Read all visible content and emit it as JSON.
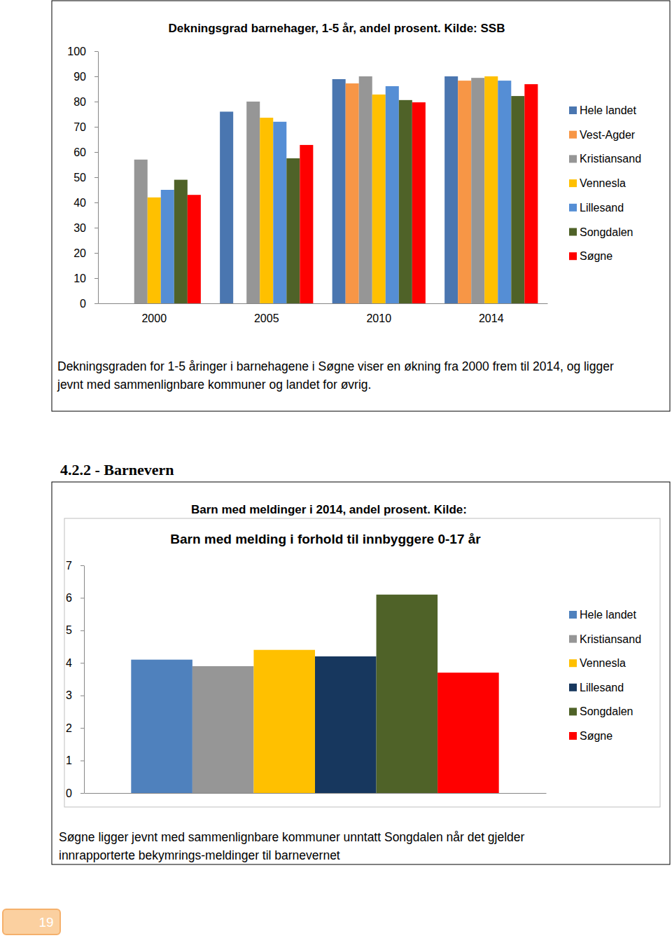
{
  "chart_data": [
    {
      "type": "bar",
      "title": "Dekningsgrad barnehager, 1-5 år, andel prosent. Kilde: SSB",
      "categories": [
        "2000",
        "2005",
        "2010",
        "2014"
      ],
      "series": [
        {
          "name": "Hele landet",
          "color": "#4a76b0",
          "values": [
            null,
            76,
            88.9,
            90
          ]
        },
        {
          "name": "Vest-Agder",
          "color": "#f79646",
          "values": [
            null,
            null,
            87.2,
            88.3
          ]
        },
        {
          "name": "Kristiansand",
          "color": "#969696",
          "values": [
            57,
            80,
            90,
            89.4
          ]
        },
        {
          "name": "Vennesla",
          "color": "#ffc000",
          "values": [
            42,
            73.6,
            82.8,
            90
          ]
        },
        {
          "name": "Lillesand",
          "color": "#558ed5",
          "values": [
            45,
            72,
            86.1,
            88.3
          ]
        },
        {
          "name": "Songdalen",
          "color": "#4f6228",
          "values": [
            49,
            57.5,
            80.6,
            82.2
          ]
        },
        {
          "name": "Søgne",
          "color": "#ff0000",
          "values": [
            43,
            62.8,
            79.7,
            86.9
          ]
        }
      ],
      "ylim": [
        0,
        100
      ],
      "yticks": [
        0,
        10,
        20,
        30,
        40,
        50,
        60,
        70,
        80,
        90,
        100
      ],
      "grid": false,
      "legend": "right"
    },
    {
      "type": "bar",
      "title": "Barn med meldinger i 2014, andel prosent. Kilde:",
      "subtitle": "Barn med melding i forhold til innbyggere 0-17 år",
      "categories": [
        null
      ],
      "series": [
        {
          "name": "Hele landet",
          "color": "#4f81bd",
          "values": [
            4.1
          ]
        },
        {
          "name": "Kristiansand",
          "color": "#969696",
          "values": [
            3.9
          ]
        },
        {
          "name": "Vennesla",
          "color": "#ffc000",
          "values": [
            4.4
          ]
        },
        {
          "name": "Lillesand",
          "color": "#17375e",
          "values": [
            4.2
          ]
        },
        {
          "name": "Songdalen",
          "color": "#4f6228",
          "values": [
            6.1
          ]
        },
        {
          "name": "Søgne",
          "color": "#ff0000",
          "values": [
            3.7
          ]
        }
      ],
      "ylim": [
        0,
        7
      ],
      "yticks": [
        0,
        1,
        2,
        3,
        4,
        5,
        6,
        7
      ],
      "grid": false,
      "legend": "right"
    }
  ],
  "document": {
    "heading": "4.2.2 - Barnevern",
    "captions": [
      [
        "Dekningsgraden for 1-5 åringer i barnehagene i Søgne viser en økning fra 2000 frem til 2014, og ligger",
        "jevnt med sammenlignbare kommuner og landet for øvrig."
      ],
      [
        "Søgne ligger jevnt med sammenlignbare kommuner unntatt Songdalen når det gjelder",
        "innrapporterte bekymrings-meldinger til barnevernet"
      ]
    ],
    "page_number": "19"
  }
}
